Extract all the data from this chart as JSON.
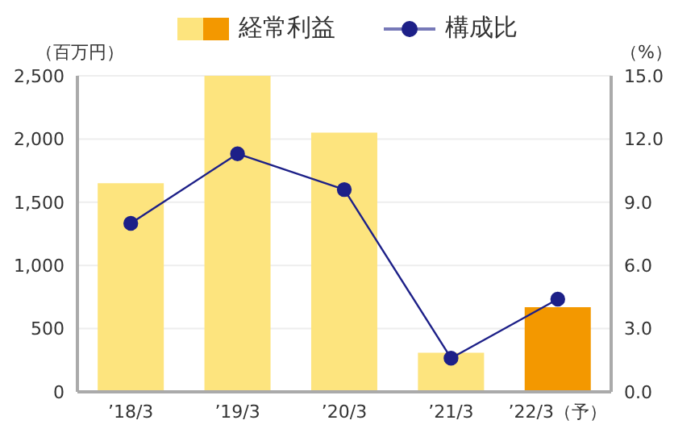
{
  "chart_data": {
    "type": "bar",
    "categories": [
      "’18/3",
      "’19/3",
      "’20/3",
      "’21/3",
      "’22/3（予）"
    ],
    "series": [
      {
        "name": "経常利益",
        "colors": [
          "#fde47e",
          "#fde47e",
          "#fde47e",
          "#fde47e",
          "#f39800"
        ],
        "values": [
          1650,
          2500,
          2050,
          310,
          670
        ]
      },
      {
        "name": "構成比",
        "type": "line",
        "axis": "y2",
        "color": "#1d2088",
        "values": [
          8.0,
          11.3,
          9.6,
          1.6,
          4.4
        ]
      }
    ],
    "ylabel": "（百万円）",
    "y2label": "（%）",
    "ylim": [
      0,
      2500
    ],
    "yticks": [
      0,
      500,
      {
        "value": 1000,
        "label": "1,000"
      },
      {
        "value": 1500,
        "label": "1,500"
      },
      {
        "value": 2000,
        "label": "2,000"
      },
      {
        "value": 2500,
        "label": "2,500"
      }
    ],
    "y2lim": [
      0,
      15
    ],
    "y2ticks": [
      {
        "value": 0,
        "label": "0.0"
      },
      {
        "value": 3,
        "label": "3.0"
      },
      {
        "value": 6,
        "label": "6.0"
      },
      {
        "value": 9,
        "label": "9.0"
      },
      {
        "value": 12,
        "label": "12.0"
      },
      {
        "value": 15,
        "label": "15.0"
      }
    ],
    "grid": "y",
    "legend": "top",
    "marker": "circle"
  }
}
